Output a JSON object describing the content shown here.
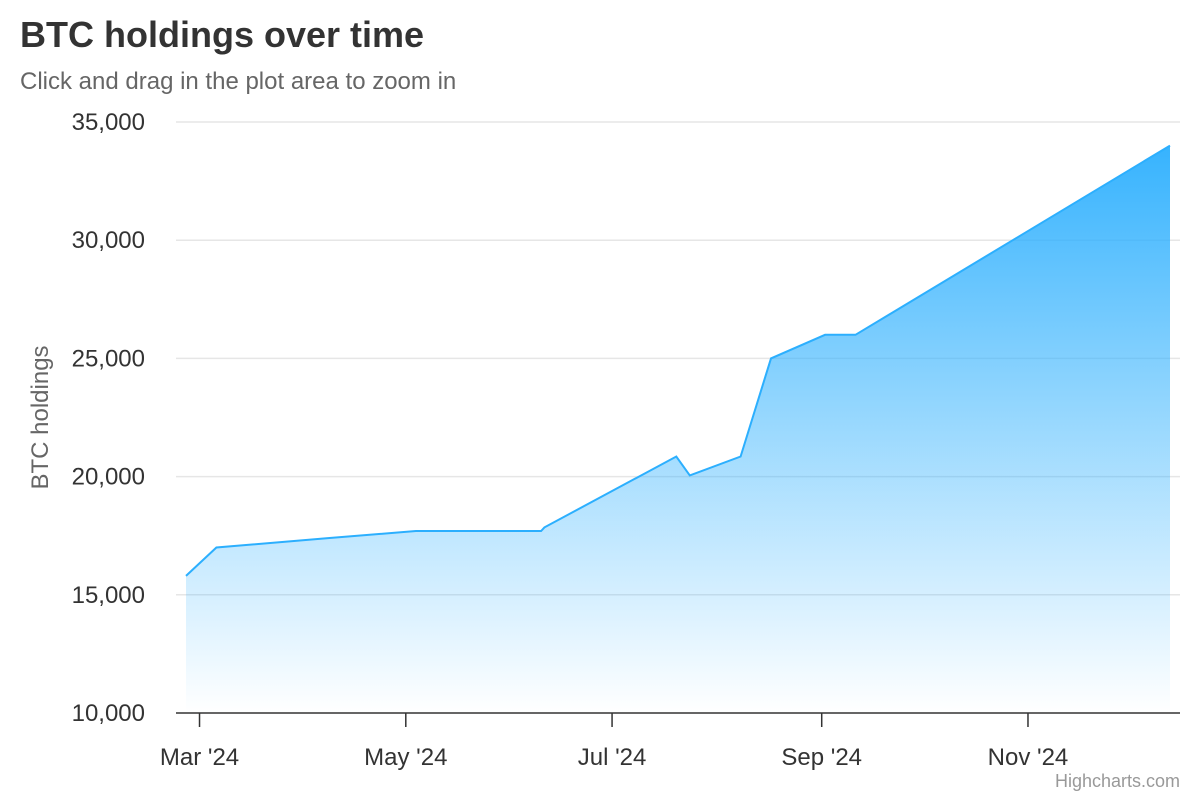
{
  "header": {
    "title": "BTC holdings over time",
    "subtitle": "Click and drag in the plot area to zoom in",
    "credits": "Highcharts.com"
  },
  "colors": {
    "series": "#2caffe",
    "grid": "#e6e6e6",
    "axis": "#333333"
  },
  "chart_data": {
    "type": "area",
    "title": "BTC holdings over time",
    "subtitle": "Click and drag in the plot area to zoom in",
    "xlabel": "",
    "ylabel": "BTC holdings",
    "x_type": "datetime",
    "xlim": [
      "2024-02-26",
      "2024-12-13"
    ],
    "ylim": [
      10000,
      35000
    ],
    "yticks": [
      10000,
      15000,
      20000,
      25000,
      30000,
      35000
    ],
    "ytick_labels": [
      "10,000",
      "15,000",
      "20,000",
      "25,000",
      "30,000",
      "35,000"
    ],
    "xticks": [
      "2024-03-01",
      "2024-05-01",
      "2024-07-01",
      "2024-09-01",
      "2024-11-01"
    ],
    "xtick_labels": [
      "Mar '24",
      "May '24",
      "Jul '24",
      "Sep '24",
      "Nov '24"
    ],
    "grid": true,
    "legend": false,
    "series": [
      {
        "x": [
          "2024-02-26",
          "2024-03-06",
          "2024-04-08",
          "2024-05-04",
          "2024-06-10",
          "2024-06-11",
          "2024-07-20",
          "2024-07-24",
          "2024-08-08",
          "2024-08-17",
          "2024-09-02",
          "2024-09-11",
          "2024-12-13"
        ],
        "values": [
          15800,
          17000,
          17400,
          17700,
          17700,
          17850,
          20850,
          20050,
          20850,
          25000,
          26000,
          26000,
          34000
        ]
      }
    ]
  }
}
